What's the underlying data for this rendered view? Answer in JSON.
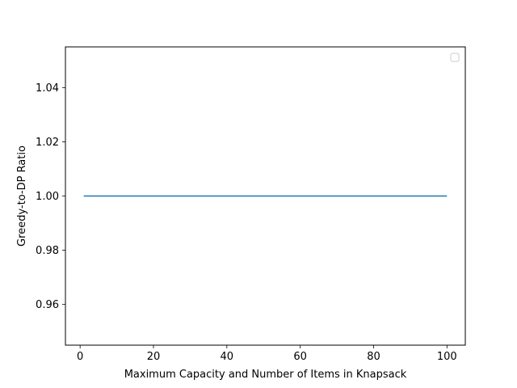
{
  "chart_data": {
    "type": "line",
    "title": "",
    "xlabel": "Maximum Capacity and Number of Items in Knapsack",
    "ylabel": "Greedy-to-DP Ratio",
    "xlim": [
      -4.0,
      105.0
    ],
    "ylim": [
      0.945,
      1.055
    ],
    "xticks": [
      0,
      20,
      40,
      60,
      80,
      100
    ],
    "xtick_labels": [
      "0",
      "20",
      "40",
      "60",
      "80",
      "100"
    ],
    "yticks": [
      0.96,
      0.98,
      1.0,
      1.02,
      1.04
    ],
    "ytick_labels": [
      "0.96",
      "0.98",
      "1.00",
      "1.02",
      "1.04"
    ],
    "grid": false,
    "legend": {
      "placement": "upper-right",
      "entries": []
    },
    "series": [
      {
        "color": "#1f77b4",
        "x": [
          1,
          100
        ],
        "y": [
          1.0,
          1.0
        ]
      }
    ]
  }
}
